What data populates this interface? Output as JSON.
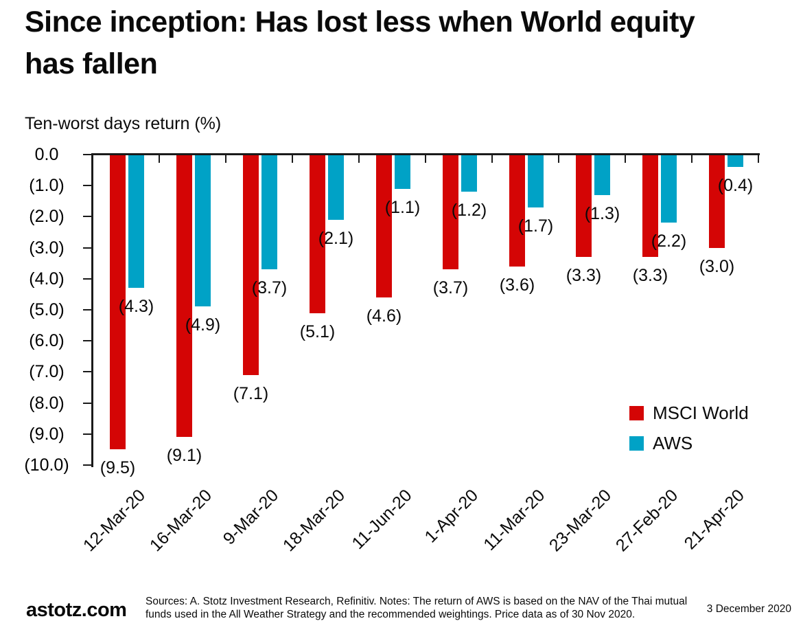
{
  "page": {
    "title_line1": "Since inception: Has lost less when World equity",
    "title_line2": "has fallen"
  },
  "chart_data": {
    "type": "bar",
    "title": "Since inception: Has lost less when World equity has fallen",
    "ylabel": "Ten-worst days return (%)",
    "xlabel": "",
    "categories": [
      "12-Mar-20",
      "16-Mar-20",
      "9-Mar-20",
      "18-Mar-20",
      "11-Jun-20",
      "1-Apr-20",
      "11-Mar-20",
      "23-Mar-20",
      "27-Feb-20",
      "21-Apr-20"
    ],
    "series": [
      {
        "name": "MSCI World",
        "color": "#D40505",
        "values": [
          -9.5,
          -9.1,
          -7.1,
          -5.1,
          -4.6,
          -3.7,
          -3.6,
          -3.3,
          -3.3,
          -3.0
        ],
        "data_labels": [
          "(9.5)",
          "(9.1)",
          "(7.1)",
          "(5.1)",
          "(4.6)",
          "(3.7)",
          "(3.6)",
          "(3.3)",
          "(3.3)",
          "(3.0)"
        ]
      },
      {
        "name": "AWS",
        "color": "#00A2C6",
        "values": [
          -4.3,
          -4.9,
          -3.7,
          -2.1,
          -1.1,
          -1.2,
          -1.7,
          -1.3,
          -2.2,
          -0.4
        ],
        "data_labels": [
          "(4.3)",
          "(4.9)",
          "(3.7)",
          "(2.1)",
          "(1.1)",
          "(1.2)",
          "(1.7)",
          "(1.3)",
          "(2.2)",
          "(0.4)"
        ]
      }
    ],
    "ylim": [
      -10,
      0
    ],
    "ytick_labels": [
      "0.0",
      "(1.0)",
      "(2.0)",
      "(3.0)",
      "(4.0)",
      "(5.0)",
      "(6.0)",
      "(7.0)",
      "(8.0)",
      "(9.0)",
      "(10.0)"
    ],
    "grid": false,
    "legend_position": "right-middle",
    "axis_color": "#1a1a1a"
  },
  "footer": {
    "brand": "astotz.com",
    "sources": "Sources: A. Stotz Investment Research, Refinitiv. Notes: The return of AWS is based on the NAV of the Thai mutual funds used in the All Weather Strategy and the recommended weightings. Price data as of 30 Nov 2020.",
    "date": "3 December 2020"
  }
}
